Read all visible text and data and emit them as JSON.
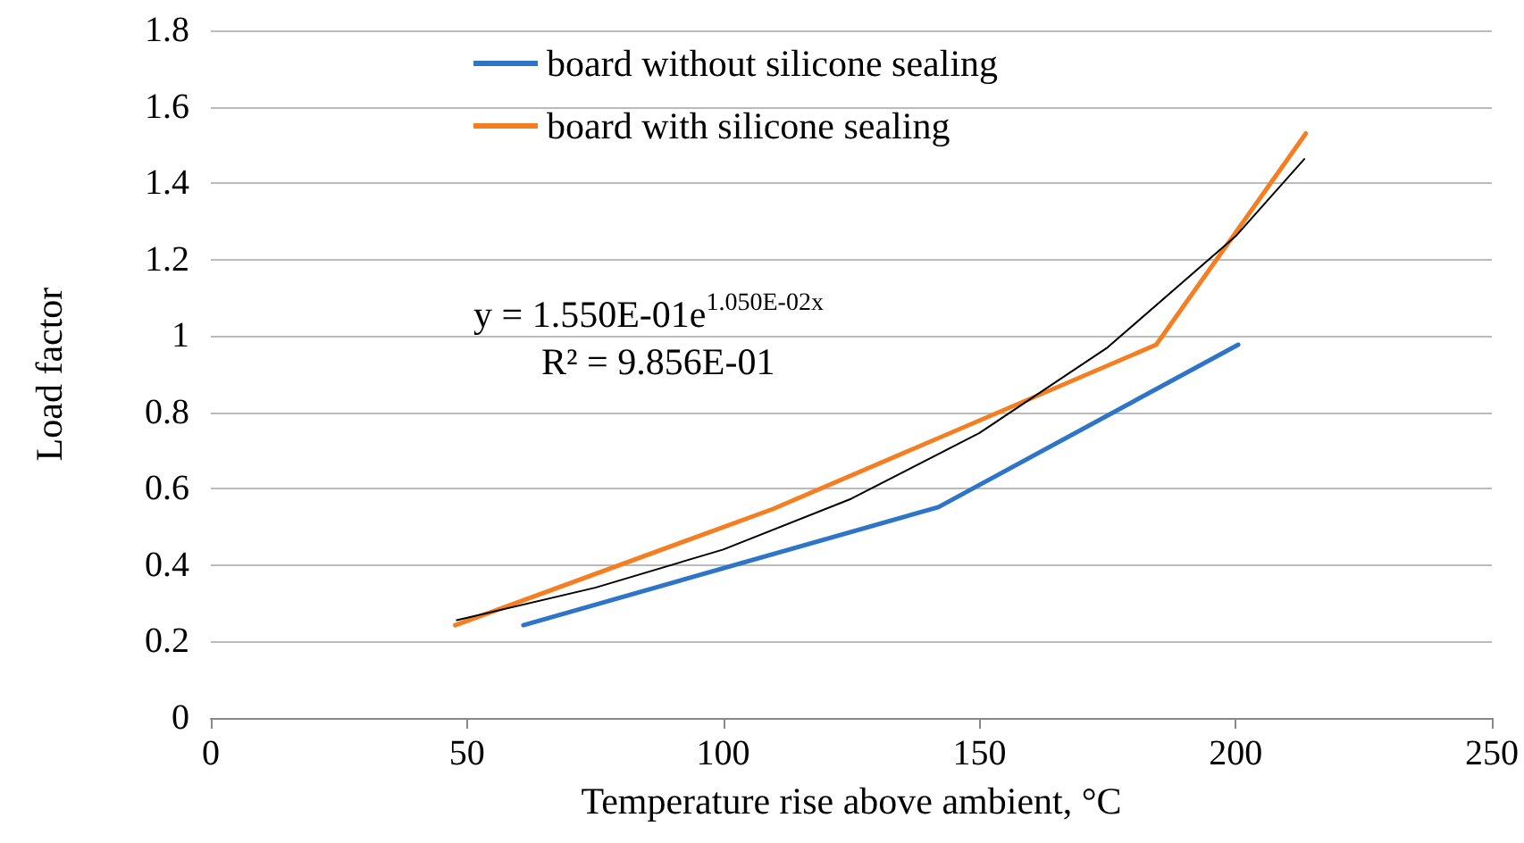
{
  "chart_data": {
    "type": "line",
    "xlabel": "Temperature rise above ambient, °C",
    "ylabel": "Load factor",
    "xlim": [
      0,
      250
    ],
    "xticks": [
      0,
      50,
      100,
      150,
      200,
      250
    ],
    "ylim": [
      0,
      1.8
    ],
    "yticks": [
      0,
      0.2,
      0.4,
      0.6,
      0.8,
      1,
      1.2,
      1.4,
      1.6,
      1.8
    ],
    "grid": "y",
    "legend": "top",
    "marker": "none",
    "line_style": "solid",
    "series": [
      {
        "name": "board without silicone sealing",
        "color": "#2e75c8",
        "x": [
          61,
          142,
          200.5
        ],
        "values": [
          0.243,
          0.552,
          0.977
        ]
      },
      {
        "name": "board with silicone sealing",
        "color": "#f47f22",
        "x": [
          47.7,
          109.7,
          184.5,
          213.7
        ],
        "values": [
          0.243,
          0.547,
          0.977,
          1.53
        ]
      },
      {
        "color": "#000000",
        "x": [
          48,
          75,
          100,
          125,
          150,
          175,
          200,
          213.4
        ],
        "values": [
          0.256,
          0.341,
          0.441,
          0.574,
          0.746,
          0.97,
          1.261,
          1.463
        ]
      }
    ],
    "annotations": [
      "y = 1.550E-01e$^{1.050E-02x}$",
      "R² = 9.856E-01"
    ]
  }
}
